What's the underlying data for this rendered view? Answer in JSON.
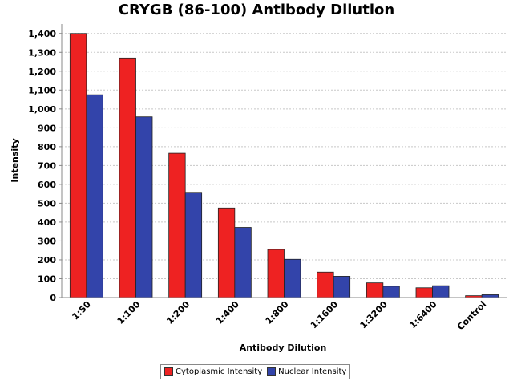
{
  "chart_data": {
    "type": "bar",
    "title": "CRYGB (86-100) Antibody Dilution",
    "xlabel": "Antibody Dilution",
    "ylabel": "Intensity",
    "ylim": [
      0,
      1450
    ],
    "yticks": [
      0,
      100,
      200,
      300,
      400,
      500,
      600,
      700,
      800,
      900,
      1000,
      1100,
      1200,
      1300,
      1400
    ],
    "ytick_labels": [
      "0",
      "100",
      "200",
      "300",
      "400",
      "500",
      "600",
      "700",
      "800",
      "900",
      "1,000",
      "1,100",
      "1,200",
      "1,300",
      "1,400"
    ],
    "grid": true,
    "legend_position": "bottom",
    "categories": [
      "1:50",
      "1:100",
      "1:200",
      "1:400",
      "1:800",
      "1:1600",
      "1:3200",
      "1:6400",
      "Control"
    ],
    "series": [
      {
        "name": "Cytoplasmic Intensity",
        "color": "#ee2222",
        "values": [
          1400,
          1270,
          765,
          475,
          255,
          135,
          78,
          52,
          10
        ]
      },
      {
        "name": "Nuclear Intensity",
        "color": "#3344aa",
        "values": [
          1075,
          958,
          558,
          372,
          203,
          113,
          60,
          63,
          15
        ]
      }
    ]
  }
}
